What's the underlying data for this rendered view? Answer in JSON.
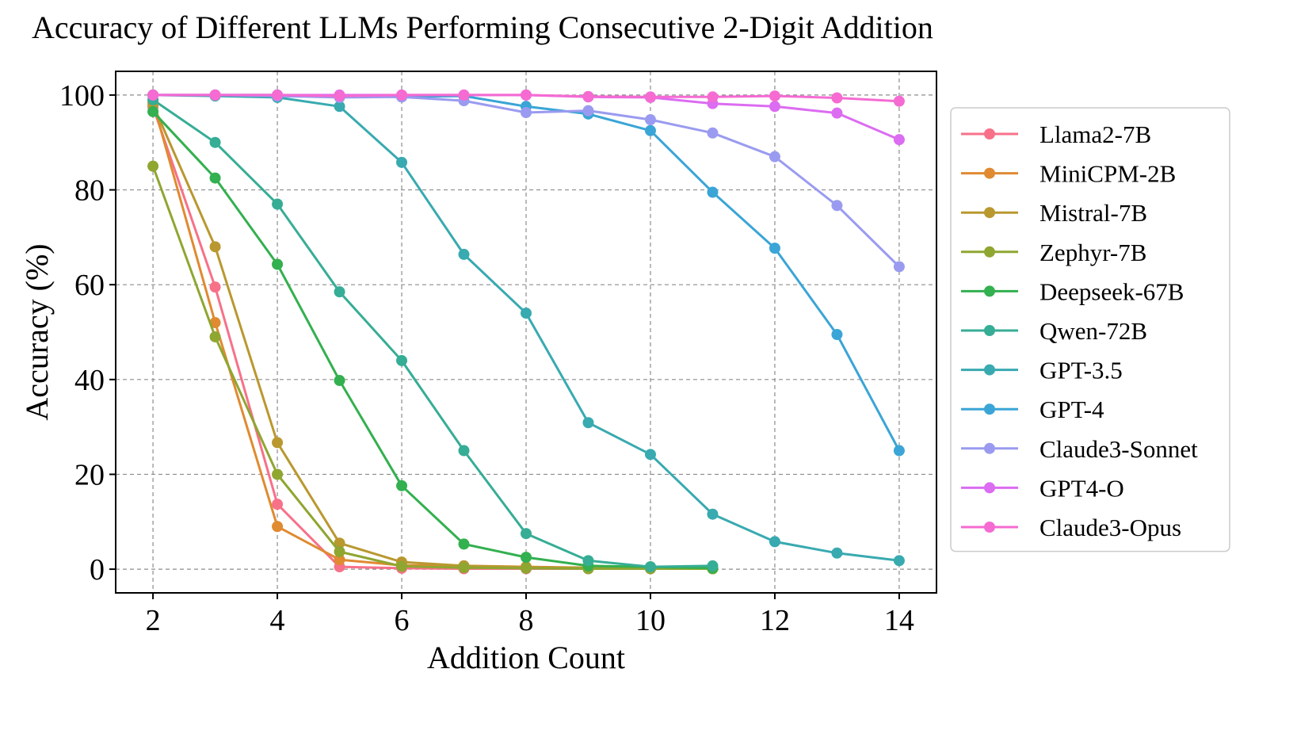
{
  "chart_data": {
    "type": "line",
    "title": "Accuracy of Different LLMs Performing Consecutive 2-Digit Addition",
    "xlabel": "Addition Count",
    "ylabel": "Accuracy (%)",
    "xlim": [
      1.4,
      14.6
    ],
    "ylim": [
      -5,
      105
    ],
    "xticks": [
      2,
      4,
      6,
      8,
      10,
      12,
      14
    ],
    "yticks": [
      0,
      20,
      40,
      60,
      80,
      100
    ],
    "grid": true,
    "legend_position": "right",
    "series": [
      {
        "name": "Llama2-7B",
        "color": "#f77189",
        "x": [
          2,
          3,
          4,
          5,
          6,
          7,
          8,
          9,
          10,
          11
        ],
        "y": [
          97.5,
          59.5,
          13.7,
          0.5,
          0.2,
          0.1,
          0.1,
          0.1,
          0.1,
          0.1
        ]
      },
      {
        "name": "MiniCPM-2B",
        "color": "#e08a31",
        "x": [
          2,
          3,
          4,
          5,
          6,
          7,
          8,
          9,
          10,
          11
        ],
        "y": [
          98.5,
          52,
          9,
          2,
          0.8,
          0.7,
          0.5,
          0.3,
          0.2,
          0.1
        ]
      },
      {
        "name": "Mistral-7B",
        "color": "#b9982f",
        "x": [
          2,
          3,
          4,
          5,
          6,
          7,
          8,
          9,
          10,
          11
        ],
        "y": [
          98,
          68,
          26.7,
          5.5,
          1.5,
          0.7,
          0.4,
          0.3,
          0.2,
          0.1
        ]
      },
      {
        "name": "Zephyr-7B",
        "color": "#8fa631",
        "x": [
          2,
          3,
          4,
          5,
          6,
          7,
          8,
          9,
          10,
          11
        ],
        "y": [
          85,
          49,
          20,
          3.7,
          0.6,
          0.3,
          0.2,
          0.1,
          0.1,
          0.1
        ]
      },
      {
        "name": "Deepseek-67B",
        "color": "#33b04f",
        "x": [
          2,
          3,
          4,
          5,
          6,
          7,
          8,
          9,
          10,
          11
        ],
        "y": [
          96.5,
          82.5,
          64.3,
          39.8,
          17.6,
          5.3,
          2.5,
          0.7,
          0.5,
          0.2
        ]
      },
      {
        "name": "Qwen-72B",
        "color": "#36ad95",
        "x": [
          2,
          3,
          4,
          5,
          6,
          7,
          8,
          9,
          10,
          11
        ],
        "y": [
          99,
          90,
          77,
          58.5,
          44,
          25,
          7.5,
          1.8,
          0.5,
          0.7
        ]
      },
      {
        "name": "GPT-3.5",
        "color": "#38aab0",
        "x": [
          2,
          3,
          4,
          5,
          6,
          7,
          8,
          9,
          10,
          11,
          12,
          13,
          14
        ],
        "y": [
          100,
          99.8,
          99.5,
          97.6,
          85.8,
          66.4,
          54,
          30.9,
          24.2,
          11.6,
          5.8,
          3.4,
          1.8
        ]
      },
      {
        "name": "GPT-4",
        "color": "#3aa5d6",
        "x": [
          2,
          3,
          4,
          5,
          6,
          7,
          8,
          9,
          10,
          11,
          12,
          13,
          14
        ],
        "y": [
          100,
          100,
          100,
          99.8,
          99.6,
          99.8,
          97.6,
          96,
          92.5,
          79.5,
          67.7,
          49.5,
          25
        ]
      },
      {
        "name": "Claude3-Sonnet",
        "color": "#9a9bf0",
        "x": [
          2,
          3,
          4,
          5,
          6,
          7,
          8,
          9,
          10,
          11,
          12,
          13,
          14
        ],
        "y": [
          100,
          100,
          99.8,
          99.5,
          99.6,
          98.8,
          96.3,
          96.7,
          94.8,
          92,
          87,
          76.7,
          63.8
        ]
      },
      {
        "name": "GPT4-O",
        "color": "#dc6cf1",
        "x": [
          2,
          3,
          4,
          5,
          6,
          7,
          8,
          9,
          10,
          11,
          12,
          13,
          14
        ],
        "y": [
          100,
          100,
          100,
          100,
          100,
          100,
          100,
          99.6,
          99.5,
          98.2,
          97.6,
          96.2,
          90.6
        ]
      },
      {
        "name": "Claude3-Opus",
        "color": "#f56bd2",
        "x": [
          2,
          3,
          4,
          5,
          6,
          7,
          8,
          9,
          10,
          11,
          12,
          13,
          14
        ],
        "y": [
          100,
          100,
          100,
          99.8,
          100,
          100,
          100,
          99.7,
          99.6,
          99.6,
          99.8,
          99.4,
          98.7
        ]
      }
    ]
  }
}
